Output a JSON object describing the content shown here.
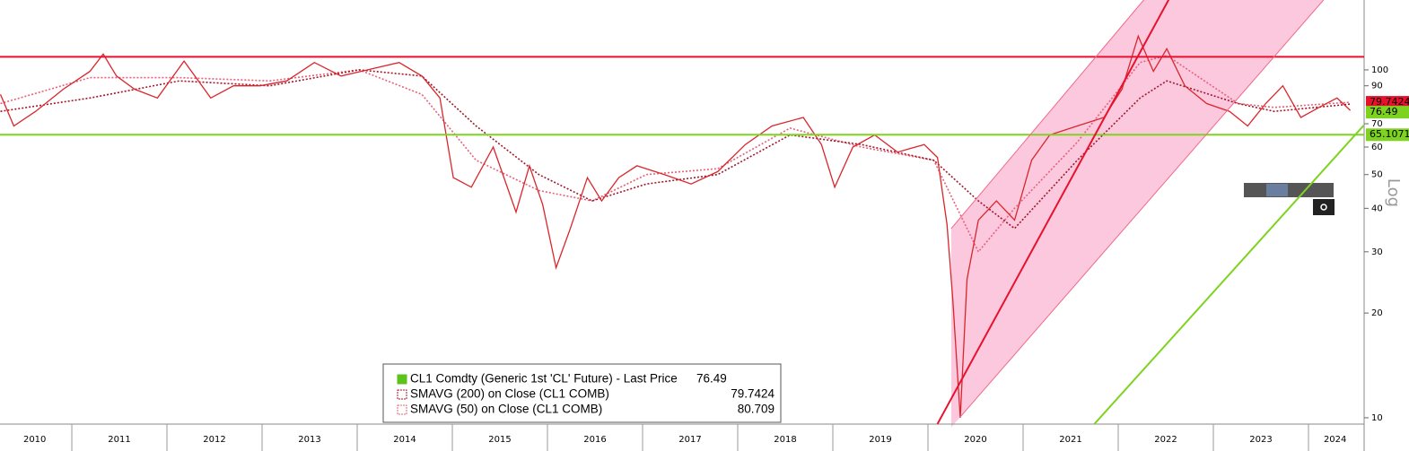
{
  "chart_data": {
    "type": "line",
    "log_scale": true,
    "xlim": [
      2010.245,
      2024.585
    ],
    "ylim": [
      9.59,
      158.8
    ],
    "yticks": [
      10,
      20,
      30,
      40,
      50,
      60,
      70,
      90,
      100
    ],
    "xticks": [
      2011,
      2012,
      2013,
      2014,
      2015,
      2016,
      2017,
      2018,
      2019,
      2020,
      2021,
      2022,
      2023,
      2024
    ],
    "year_labels": [
      {
        "value": 2010.61,
        "label": "2010"
      },
      {
        "value": 2011.5,
        "label": "2011"
      },
      {
        "value": 2012.5,
        "label": "2012"
      },
      {
        "value": 2013.5,
        "label": "2013"
      },
      {
        "value": 2014.5,
        "label": "2014"
      },
      {
        "value": 2015.5,
        "label": "2015"
      },
      {
        "value": 2016.5,
        "label": "2016"
      },
      {
        "value": 2017.5,
        "label": "2017"
      },
      {
        "value": 2018.5,
        "label": "2018"
      },
      {
        "value": 2019.5,
        "label": "2019"
      },
      {
        "value": 2020.5,
        "label": "2020"
      },
      {
        "value": 2021.5,
        "label": "2021"
      },
      {
        "value": 2022.5,
        "label": "2022"
      },
      {
        "value": 2023.5,
        "label": "2023"
      },
      {
        "value": 2024.28,
        "label": "2024"
      }
    ],
    "scale_label": "Log",
    "series": [
      {
        "name": "CL1 Comdty (Generic 1st 'CL' Future) - Last Price",
        "legend_color": "#5cc31e",
        "color": "#d9262c",
        "dash": "none",
        "x": [
          2010.25,
          2010.39,
          2010.62,
          2010.91,
          2011.19,
          2011.33,
          2011.47,
          2011.66,
          2011.9,
          2012.18,
          2012.46,
          2012.7,
          2012.98,
          2013.26,
          2013.55,
          2013.83,
          2014.11,
          2014.44,
          2014.68,
          2014.87,
          2015.01,
          2015.2,
          2015.43,
          2015.67,
          2015.81,
          2015.95,
          2016.09,
          2016.24,
          2016.42,
          2016.57,
          2016.75,
          2016.94,
          2017.23,
          2017.51,
          2017.79,
          2018.08,
          2018.36,
          2018.69,
          2018.88,
          2019.02,
          2019.21,
          2019.44,
          2019.68,
          2019.96,
          2020.1,
          2020.2,
          2020.26,
          2020.34,
          2020.41,
          2020.53,
          2020.72,
          2020.91,
          2021.09,
          2021.28,
          2021.57,
          2021.85,
          2022.04,
          2022.21,
          2022.37,
          2022.51,
          2022.7,
          2022.93,
          2023.17,
          2023.36,
          2023.55,
          2023.73,
          2023.92,
          2024.11,
          2024.3,
          2024.44
        ],
        "values": [
          85,
          69,
          76,
          88,
          99,
          111,
          96,
          88,
          83,
          106,
          83,
          90,
          90,
          93,
          105,
          96,
          100,
          105,
          96,
          83,
          49,
          46,
          60,
          39,
          53,
          41,
          27,
          35,
          49,
          42,
          49,
          53,
          50,
          47,
          51,
          61,
          69,
          73,
          61,
          46,
          60,
          65,
          58,
          61,
          56,
          36,
          22,
          10,
          25,
          37,
          42,
          37,
          55,
          65,
          69,
          73,
          88,
          125,
          99,
          115,
          90,
          80,
          76,
          69,
          80,
          90,
          73,
          78,
          83,
          76.49
        ]
      },
      {
        "name": "SMAVG (200)  on Close (CL1 COMB)",
        "legend_color": "#a01828",
        "color": "#a01828",
        "dash": "2 2",
        "x": [
          2010.25,
          2011.19,
          2012.13,
          2013.08,
          2014.02,
          2014.68,
          2015.25,
          2015.91,
          2016.47,
          2017.04,
          2017.79,
          2018.55,
          2019.3,
          2020.06,
          2020.53,
          2020.91,
          2021.57,
          2022.23,
          2022.51,
          2023.26,
          2023.64,
          2024.44
        ],
        "values": [
          76,
          83,
          93,
          90,
          100,
          96,
          69,
          50,
          42,
          47,
          50,
          65,
          61,
          55,
          42,
          35,
          55,
          83,
          93,
          80,
          76,
          79.7424
        ]
      },
      {
        "name": "SMAVG (50)  on Close (CL1 COMB)",
        "legend_color": "#e8607a",
        "color": "#e8607a",
        "dash": "2 2",
        "x": [
          2010.25,
          2011.19,
          2012.13,
          2013.08,
          2014.02,
          2014.68,
          2015.25,
          2015.91,
          2016.47,
          2017.04,
          2017.79,
          2018.55,
          2019.3,
          2020.06,
          2020.53,
          2020.91,
          2021.57,
          2022.23,
          2022.51,
          2023.26,
          2023.64,
          2024.44
        ],
        "values": [
          80,
          95,
          95,
          93,
          100,
          85,
          55,
          45,
          42,
          50,
          52,
          68,
          60,
          55,
          30,
          40,
          62,
          105,
          110,
          80,
          78,
          80.709
        ]
      }
    ],
    "reference_lines": [
      {
        "value": 109,
        "color": "#e8112d"
      },
      {
        "value": 65.1071,
        "color": "#7ed321"
      }
    ],
    "trend_lines": [
      {
        "x": [
          2020.1,
          2022.53
        ],
        "values": [
          9.6,
          159
        ],
        "color": "#e8112d",
        "width": 2
      },
      {
        "x": [
          2020.245,
          2022.27
        ],
        "values": [
          35,
          159
        ],
        "color": "#f06a8a",
        "width": 1
      },
      {
        "x": [
          2020.34,
          2024.16
        ],
        "values": [
          10.06,
          159
        ],
        "color": "#f06a8a",
        "width": 1
      },
      {
        "x": [
          2021.75,
          2024.58
        ],
        "values": [
          9.6,
          69.2
        ],
        "color": "#7ed321",
        "width": 2
      }
    ],
    "channel_color": "#fbc8de"
  }
}
